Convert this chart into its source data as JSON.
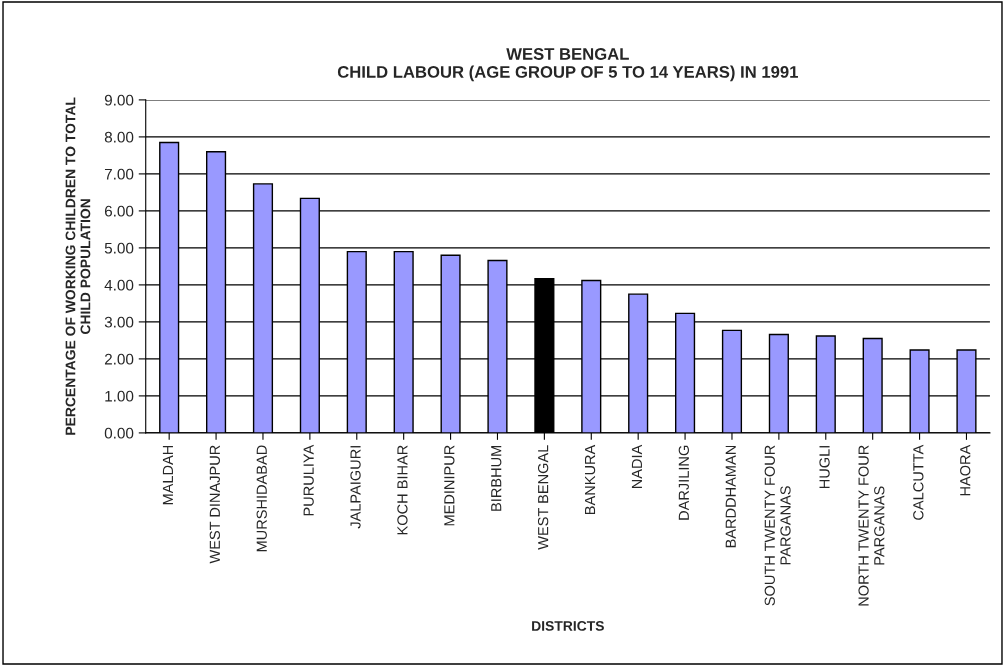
{
  "chart_data": {
    "type": "bar",
    "title": "WEST BENGAL\nCHILD LABOUR (AGE GROUP OF 5 TO 14 YEARS) IN 1991",
    "xlabel": "DISTRICTS",
    "ylabel": "PERCENTAGE OF WORKING CHILDREN TO TOTAL\nCHILD POPULATION",
    "categories": [
      "MALDAH",
      "WEST DINAJPUR",
      "MURSHIDABAD",
      "PURULIYA",
      "JALPAIGURI",
      "KOCH BIHAR",
      "MEDINIPUR",
      "BIRBHUM",
      "WEST BENGAL",
      "BANKURA",
      "NADIA",
      "DARJILING",
      "BARDDHAMAN",
      "SOUTH TWENTY FOUR\nPARGANAS",
      "HUGLI",
      "NORTH TWENTY FOUR\nPARGANAS",
      "CALCUTTA",
      "HAORA"
    ],
    "values": [
      7.85,
      7.6,
      6.73,
      6.34,
      4.9,
      4.9,
      4.8,
      4.66,
      4.17,
      4.12,
      3.75,
      3.23,
      2.77,
      2.66,
      2.62,
      2.55,
      2.24,
      2.24
    ],
    "colors": [
      "#9999ff",
      "#9999ff",
      "#9999ff",
      "#9999ff",
      "#9999ff",
      "#9999ff",
      "#9999ff",
      "#9999ff",
      "#000000",
      "#9999ff",
      "#9999ff",
      "#9999ff",
      "#9999ff",
      "#9999ff",
      "#9999ff",
      "#9999ff",
      "#9999ff",
      "#9999ff"
    ],
    "ylim": [
      0,
      9
    ],
    "yticks": [
      {
        "value": 0,
        "label": "0.00"
      },
      {
        "value": 1,
        "label": "1.00"
      },
      {
        "value": 2,
        "label": "2.00"
      },
      {
        "value": 3,
        "label": "3.00"
      },
      {
        "value": 4,
        "label": "4.00"
      },
      {
        "value": 5,
        "label": "5.00"
      },
      {
        "value": 6,
        "label": "6.00"
      },
      {
        "value": 7,
        "label": "7.00"
      },
      {
        "value": 8,
        "label": "8.00"
      },
      {
        "value": 9,
        "label": "9.00"
      }
    ],
    "grid": "y"
  }
}
